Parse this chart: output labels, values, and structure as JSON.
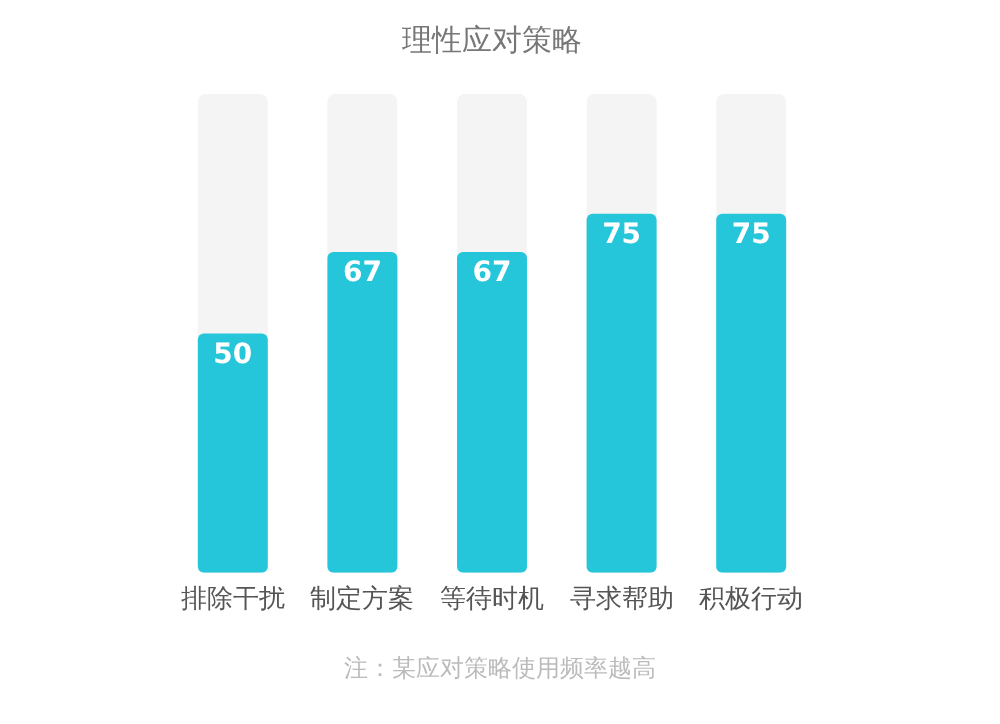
{
  "chart_data": {
    "type": "bar",
    "title": "理性应对策略",
    "categories": [
      "排除干扰",
      "制定方案",
      "等待时机",
      "寻求帮助",
      "积极行动"
    ],
    "values": [
      50,
      67,
      67,
      75,
      75
    ],
    "color": "#26c6da",
    "ylim": [
      0,
      100
    ],
    "tick_labels": "x",
    "grid": false,
    "legend": false,
    "data_labels": true,
    "annotations": [
      "注：某应对策略使用频率越高"
    ]
  }
}
